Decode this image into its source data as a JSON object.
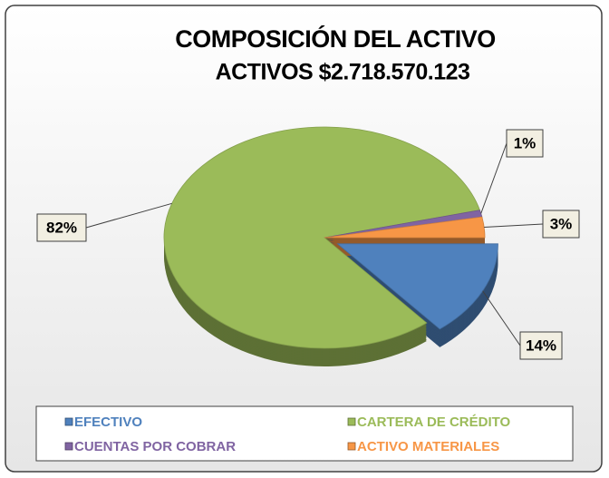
{
  "chart_data": {
    "type": "pie",
    "title": "COMPOSICIÓN DEL ACTIVO",
    "subtitle": "ACTIVOS $2.718.570.123",
    "categories": [
      "EFECTIVO",
      "CARTERA DE CRÉDITO",
      "CUENTAS POR COBRAR",
      "ACTIVO MATERIALES"
    ],
    "values": [
      14,
      82,
      1,
      3
    ],
    "value_labels": [
      "14%",
      "82%",
      "1%",
      "3%"
    ],
    "colors": [
      "#4f81bd",
      "#9bbb59",
      "#8064a2",
      "#f79646"
    ],
    "legend": "bottom"
  }
}
